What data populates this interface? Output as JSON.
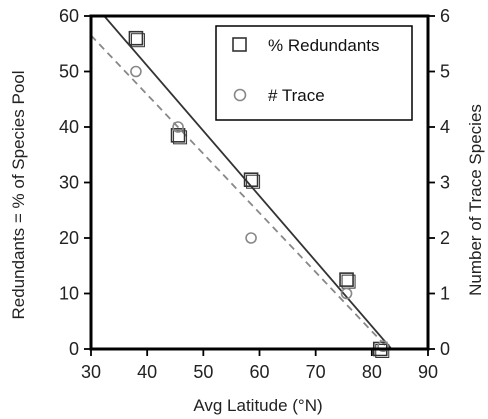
{
  "chart_data": {
    "type": "scatter",
    "xlabel": "Avg Latitude (°N)",
    "ylabel": "Redundants = % of Species Pool",
    "y2label": "Number of Trace Species",
    "xlim": [
      30,
      90
    ],
    "ylim": [
      0,
      60
    ],
    "y2lim": [
      0,
      6
    ],
    "xticks": [
      "30",
      "40",
      "50",
      "60",
      "70",
      "80",
      "90"
    ],
    "yticks": [
      "0",
      "10",
      "20",
      "30",
      "40",
      "50",
      "60"
    ],
    "y2ticks": [
      "0",
      "1",
      "2",
      "3",
      "4",
      "5",
      "6"
    ],
    "legend_position": "top-right",
    "grid": false,
    "series": [
      {
        "name": "% Redundants",
        "axis": "left",
        "marker": "square",
        "color": "#333333",
        "points": [
          {
            "x": 38,
            "y": 56
          },
          {
            "x": 45.5,
            "y": 38.5
          },
          {
            "x": 58.5,
            "y": 30.5
          },
          {
            "x": 75.5,
            "y": 12.5
          },
          {
            "x": 81.5,
            "y": 0
          }
        ],
        "fit": {
          "style": "solid",
          "from": [
            31.5,
            61
          ],
          "to": [
            83.5,
            0
          ]
        }
      },
      {
        "name": "# Trace",
        "axis": "right",
        "marker": "circle",
        "color": "#888888",
        "points": [
          {
            "x": 38,
            "y": 5.0
          },
          {
            "x": 45.5,
            "y": 4.0
          },
          {
            "x": 58.5,
            "y": 2.0
          },
          {
            "x": 75.5,
            "y": 1.0
          },
          {
            "x": 82,
            "y": 0.05
          }
        ],
        "fit": {
          "style": "dashed",
          "from": [
            30,
            5.65
          ],
          "to": [
            83,
            0
          ]
        }
      }
    ]
  }
}
